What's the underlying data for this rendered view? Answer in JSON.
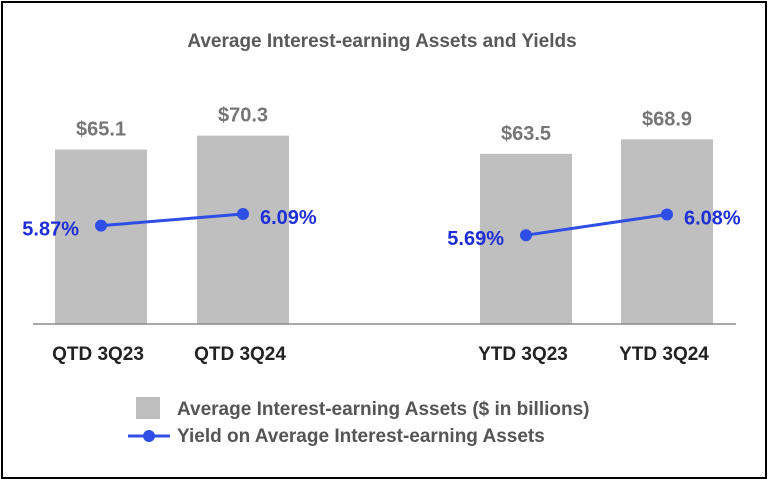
{
  "chart_data": {
    "type": "bar",
    "title": "Average Interest-earning Assets and Yields",
    "categories": [
      "QTD 3Q23",
      "QTD 3Q24",
      "YTD 3Q23",
      "YTD 3Q24"
    ],
    "series": [
      {
        "name": "Average Interest-earning Assets ($ in billions)",
        "kind": "bar",
        "values": [
          65.1,
          70.3,
          63.5,
          68.9
        ],
        "labels": [
          "$65.1",
          "$70.3",
          "$63.5",
          "$68.9"
        ],
        "color": "#bfbfbf"
      },
      {
        "name": "Yield on Average Interest-earning Assets",
        "kind": "line",
        "values": [
          5.87,
          6.09,
          5.69,
          6.08
        ],
        "labels": [
          "5.87%",
          "6.09%",
          "5.69%",
          "6.08%"
        ],
        "color": "#2e4ee6"
      }
    ],
    "line_segments": [
      [
        0,
        1
      ],
      [
        2,
        3
      ]
    ],
    "grid": false,
    "legend_position": "bottom"
  }
}
